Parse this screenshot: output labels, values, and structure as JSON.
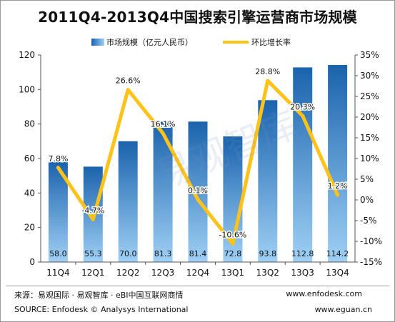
{
  "chart_data": {
    "type": "bar",
    "title": "2011Q4-2013Q4中国搜索引擎运营商市场规模",
    "categories": [
      "11Q4",
      "12Q1",
      "12Q2",
      "12Q3",
      "12Q4",
      "13Q1",
      "13Q2",
      "13Q3",
      "13Q4"
    ],
    "series": [
      {
        "name": "市场规模（亿元人民币）",
        "type": "bar",
        "axis": "left",
        "values": [
          58.0,
          55.3,
          70.0,
          81.3,
          81.4,
          72.8,
          93.8,
          112.8,
          114.2
        ],
        "labels": [
          "58.0",
          "55.3",
          "70.0",
          "81.3",
          "81.4",
          "72.8",
          "93.8",
          "112.8",
          "114.2"
        ]
      },
      {
        "name": "环比增长率",
        "type": "line",
        "axis": "right",
        "values": [
          7.8,
          -4.7,
          26.6,
          16.1,
          0.1,
          -10.6,
          28.8,
          20.3,
          1.2
        ],
        "labels": [
          "7.8%",
          "-4.7%",
          "26.6%",
          "16.1%",
          "0.1%",
          "-10.6%",
          "28.8%",
          "20.3%",
          "1.2%"
        ]
      }
    ],
    "ylim_left": [
      0,
      120
    ],
    "ylim_right": [
      -15,
      35
    ],
    "yticks_left": [
      "0",
      "20",
      "40",
      "60",
      "80",
      "100",
      "120"
    ],
    "yticks_right": [
      "-15%",
      "-10%",
      "-5%",
      "0%",
      "5%",
      "10%",
      "15%",
      "20%",
      "25%",
      "30%",
      "35%"
    ],
    "legend": "top",
    "grid": false,
    "colors": {
      "bar_top": "#1a63ad",
      "bar_bottom": "#9fd0f5",
      "line": "#ffc218"
    }
  },
  "footer": {
    "source_cn": "来源：易观国际 · 易观智库 · eBI中国互联网商情",
    "source_en": "SOURCE: Enfodesk © Analysys International",
    "url1": "www.enfodesk.com",
    "url2": "www.eguan.cn"
  },
  "watermark": "易观智库"
}
